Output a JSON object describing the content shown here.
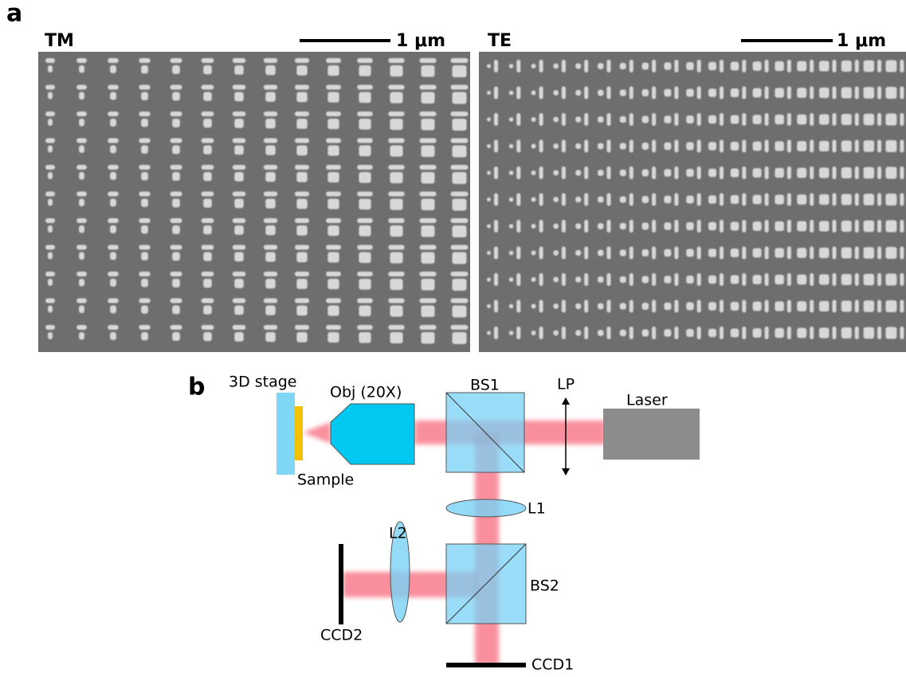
{
  "panels": [
    {
      "label": "a",
      "images": [
        {
          "title": "TM",
          "scale_bar": "1 μm"
        },
        {
          "title": "TE",
          "scale_bar": "1 μm"
        }
      ]
    },
    {
      "label": "b",
      "components": {
        "stage": "3D stage",
        "objective": "Obj (20X)",
        "bs1": "BS1",
        "polarizer": "LP",
        "laser": "Laser",
        "sample": "Sample",
        "l1": "L1",
        "l2": "L2",
        "bs2": "BS2",
        "ccd2": "CCD2",
        "ccd1": "CCD1"
      }
    }
  ]
}
